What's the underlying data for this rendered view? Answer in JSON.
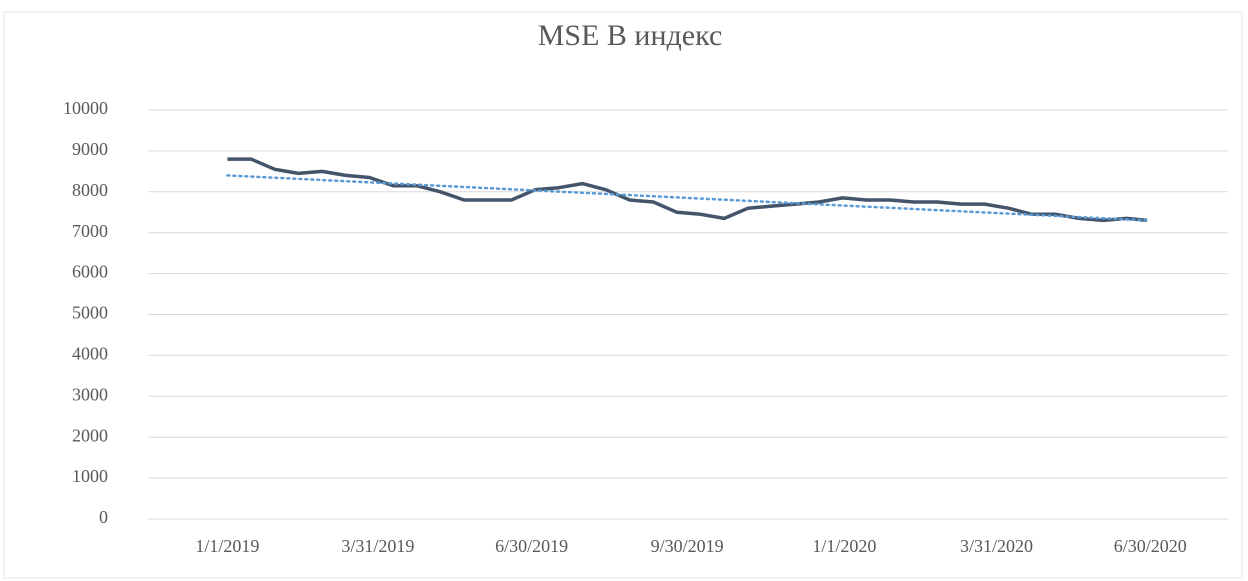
{
  "chart_data": {
    "type": "line",
    "title": "MSE B индекс",
    "x": [
      "1/1/2019",
      "1/15/2019",
      "1/29/2019",
      "2/12/2019",
      "2/26/2019",
      "3/12/2019",
      "3/26/2019",
      "4/9/2019",
      "4/23/2019",
      "5/7/2019",
      "5/21/2019",
      "6/4/2019",
      "6/18/2019",
      "7/2/2019",
      "7/16/2019",
      "7/30/2019",
      "8/13/2019",
      "8/27/2019",
      "9/10/2019",
      "9/24/2019",
      "10/8/2019",
      "10/22/2019",
      "11/5/2019",
      "11/19/2019",
      "12/3/2019",
      "12/17/2019",
      "12/31/2019",
      "1/14/2020",
      "1/28/2020",
      "2/11/2020",
      "2/25/2020",
      "3/10/2020",
      "3/24/2020",
      "4/7/2020",
      "4/21/2020",
      "5/5/2020",
      "5/19/2020",
      "6/2/2020",
      "6/16/2020",
      "6/28/2020"
    ],
    "series": [
      {
        "color": "#44546a",
        "values": [
          8800,
          8800,
          8550,
          8450,
          8500,
          8400,
          8350,
          8150,
          8150,
          8000,
          7800,
          7800,
          7800,
          8050,
          8100,
          8200,
          8050,
          7800,
          7750,
          7500,
          7450,
          7350,
          7600,
          7650,
          7700,
          7750,
          7850,
          7800,
          7800,
          7750,
          7750,
          7700,
          7700,
          7600,
          7450,
          7450,
          7350,
          7300,
          7350,
          7300
        ]
      }
    ],
    "trendline": {
      "color": "#5b9bd5",
      "style": "dotted",
      "x": [
        "1/1/2019",
        "6/28/2020"
      ],
      "values": [
        8400,
        7300
      ]
    },
    "xlim": [
      "11/15/2018",
      "8/15/2020"
    ],
    "xticks": [
      "1/1/2019",
      "3/31/2019",
      "6/30/2019",
      "9/30/2019",
      "1/1/2020",
      "3/31/2020",
      "6/30/2020"
    ],
    "ylim": [
      0,
      10000
    ],
    "yticks": [
      0,
      1000,
      2000,
      3000,
      4000,
      5000,
      6000,
      7000,
      8000,
      9000,
      10000
    ],
    "grid": true
  }
}
